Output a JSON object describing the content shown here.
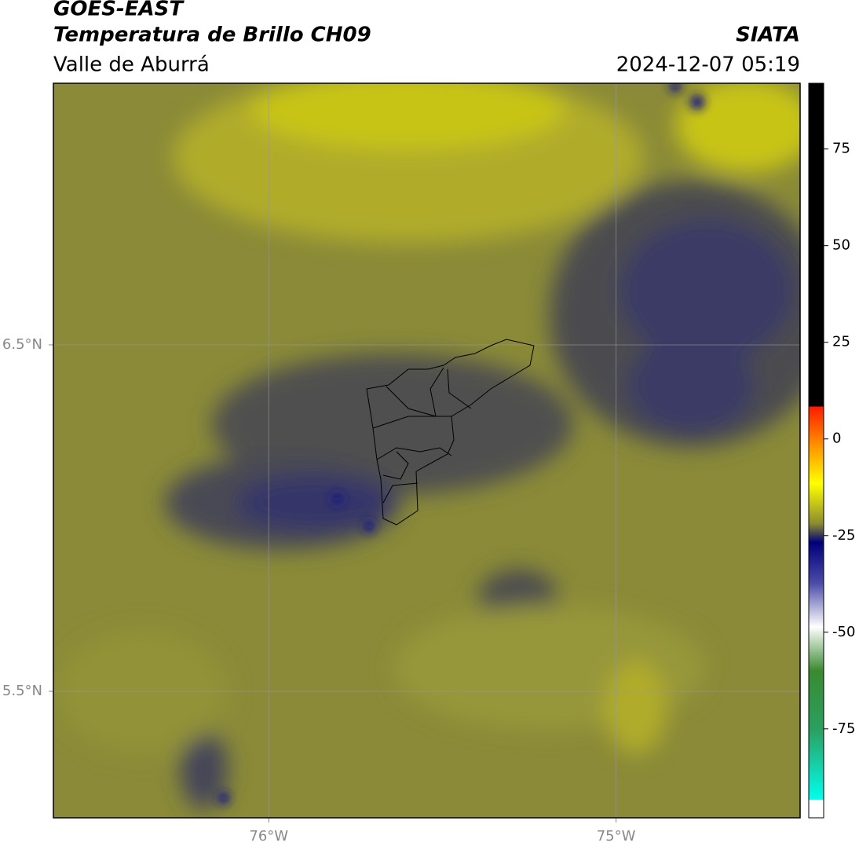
{
  "header": {
    "title": "GOES-EAST",
    "subtitle": "Temperatura de Brillo CH09",
    "region": "Valle de Aburrá",
    "source": "SIATA",
    "datetime": "2024-12-07 05:19"
  },
  "map": {
    "lonlim": [
      -76.62,
      -74.47
    ],
    "latlim": [
      5.135,
      7.255
    ],
    "lon_ticks": [
      {
        "value": -76,
        "label": "76°W"
      },
      {
        "value": -75,
        "label": "75°W"
      }
    ],
    "lat_ticks": [
      {
        "value": 6.5,
        "label": "6.5°N"
      },
      {
        "value": 5.5,
        "label": "5.5°N"
      }
    ],
    "grid": true
  },
  "colorbar": {
    "lim": [
      -98,
      92
    ],
    "ticks": [
      75,
      50,
      25,
      0,
      -25,
      -50,
      -75
    ]
  }
}
